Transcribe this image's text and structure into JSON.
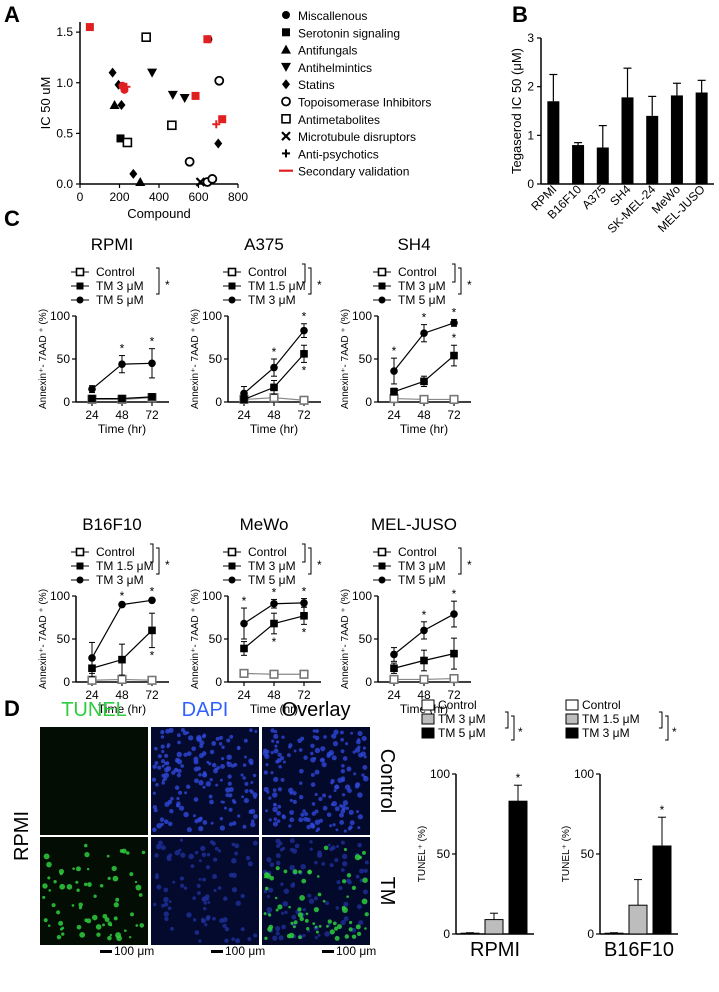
{
  "panels": {
    "A": "A",
    "B": "B",
    "C": "C",
    "D": "D"
  },
  "colors": {
    "red": "#e02020",
    "black": "#000000",
    "gray": "#bdbdbd",
    "tunel": "#2ecc40",
    "dapi": "#3060ff"
  },
  "chart_data": [
    {
      "id": "A",
      "type": "scatter",
      "xlabel": "Compound",
      "ylabel": "IC 50 uM",
      "xlim": [
        0,
        800
      ],
      "ylim": [
        0,
        1.6
      ],
      "xticks": [
        "0",
        "200",
        "400",
        "600",
        "800"
      ],
      "yticks": [
        "0.0",
        "0.5",
        "1.0",
        "1.5"
      ],
      "legend": [
        {
          "label": "Miscallenous",
          "marker": "circle"
        },
        {
          "label": "Serotonin signaling",
          "marker": "square"
        },
        {
          "label": "Antifungals",
          "marker": "triangle-up"
        },
        {
          "label": "Antihelmintics",
          "marker": "triangle-down"
        },
        {
          "label": "Statins",
          "marker": "diamond"
        },
        {
          "label": "Topoisomerase Inhibitors",
          "marker": "circle-open"
        },
        {
          "label": "Antimetabolites",
          "marker": "square-open"
        },
        {
          "label": "Microtubule disruptors",
          "marker": "x"
        },
        {
          "label": "Anti-psychotics",
          "marker": "plus"
        },
        {
          "label": "Secondary validation",
          "marker": "line"
        }
      ],
      "points": [
        {
          "x": 50,
          "y": 1.55,
          "m": "square",
          "c": "red"
        },
        {
          "x": 335,
          "y": 1.45,
          "m": "square-open",
          "c": "black"
        },
        {
          "x": 650,
          "y": 1.43,
          "m": "circle",
          "c": "black"
        },
        {
          "x": 645,
          "y": 1.43,
          "m": "square",
          "c": "red"
        },
        {
          "x": 165,
          "y": 1.1,
          "m": "diamond",
          "c": "black"
        },
        {
          "x": 365,
          "y": 1.1,
          "m": "triangle-down",
          "c": "black"
        },
        {
          "x": 705,
          "y": 1.02,
          "m": "circle-open",
          "c": "black"
        },
        {
          "x": 195,
          "y": 0.98,
          "m": "diamond",
          "c": "black"
        },
        {
          "x": 215,
          "y": 0.97,
          "m": "circle",
          "c": "red"
        },
        {
          "x": 235,
          "y": 0.96,
          "m": "plus",
          "c": "red"
        },
        {
          "x": 225,
          "y": 0.93,
          "m": "circle",
          "c": "red"
        },
        {
          "x": 470,
          "y": 0.88,
          "m": "triangle-down",
          "c": "black"
        },
        {
          "x": 530,
          "y": 0.85,
          "m": "triangle-down",
          "c": "black"
        },
        {
          "x": 585,
          "y": 0.87,
          "m": "square",
          "c": "red"
        },
        {
          "x": 175,
          "y": 0.78,
          "m": "triangle-up",
          "c": "black"
        },
        {
          "x": 210,
          "y": 0.78,
          "m": "diamond",
          "c": "black"
        },
        {
          "x": 720,
          "y": 0.64,
          "m": "square",
          "c": "red"
        },
        {
          "x": 690,
          "y": 0.59,
          "m": "plus",
          "c": "red"
        },
        {
          "x": 465,
          "y": 0.58,
          "m": "square-open",
          "c": "black"
        },
        {
          "x": 205,
          "y": 0.45,
          "m": "square",
          "c": "black"
        },
        {
          "x": 240,
          "y": 0.41,
          "m": "square-open",
          "c": "black"
        },
        {
          "x": 700,
          "y": 0.4,
          "m": "diamond",
          "c": "black"
        },
        {
          "x": 555,
          "y": 0.22,
          "m": "circle-open",
          "c": "black"
        },
        {
          "x": 270,
          "y": 0.1,
          "m": "diamond",
          "c": "black"
        },
        {
          "x": 305,
          "y": 0.02,
          "m": "triangle-up",
          "c": "black"
        },
        {
          "x": 610,
          "y": 0.02,
          "m": "x",
          "c": "black"
        },
        {
          "x": 645,
          "y": 0.02,
          "m": "circle-open",
          "c": "black"
        },
        {
          "x": 670,
          "y": 0.05,
          "m": "circle-open",
          "c": "black"
        }
      ]
    },
    {
      "id": "B",
      "type": "bar",
      "ylabel": "Tegaserod IC 50 (μM)",
      "ylim": [
        0,
        3
      ],
      "yticks": [
        "0",
        "1",
        "2",
        "3"
      ],
      "categories": [
        "RPMI",
        "B16F10",
        "A375",
        "SH4",
        "SK-MEL-24",
        "MeWo",
        "MEL-JUSO"
      ],
      "values": [
        1.7,
        0.8,
        0.75,
        1.78,
        1.4,
        1.82,
        1.88
      ],
      "errors": [
        0.55,
        0.05,
        0.45,
        0.6,
        0.4,
        0.25,
        0.25
      ]
    },
    {
      "id": "C-RPMI",
      "type": "line",
      "title": "RPMI",
      "xlabel": "Time (hr)",
      "ylabel": "Annexin⁺- 7AAD ⁺ (%)",
      "x": [
        "24",
        "48",
        "72"
      ],
      "ylim": [
        0,
        100
      ],
      "yticks": [
        "0",
        "50",
        "100"
      ],
      "series": [
        {
          "name": "Control",
          "marker": "square-open",
          "values": [
            3,
            3,
            5
          ],
          "err": [
            1,
            1,
            1
          ],
          "stars": [
            false,
            false,
            false
          ]
        },
        {
          "name": "TM 3 μM",
          "marker": "square",
          "values": [
            4,
            4,
            6
          ],
          "err": [
            1,
            1,
            1
          ],
          "stars": [
            false,
            false,
            false
          ]
        },
        {
          "name": "TM 5 μM",
          "marker": "circle",
          "values": [
            15,
            44,
            45
          ],
          "err": [
            4,
            10,
            17
          ],
          "stars": [
            false,
            true,
            true
          ]
        }
      ]
    },
    {
      "id": "C-A375",
      "type": "line",
      "title": "A375",
      "xlabel": "Time (hr)",
      "ylabel": "Annexin⁺- 7AAD ⁺ (%)",
      "x": [
        "24",
        "48",
        "72"
      ],
      "ylim": [
        0,
        100
      ],
      "yticks": [
        "0",
        "50",
        "100"
      ],
      "series": [
        {
          "name": "Control",
          "marker": "square-open",
          "values": [
            3,
            5,
            2
          ],
          "err": [
            3,
            4,
            2
          ],
          "stars": [
            false,
            false,
            false
          ]
        },
        {
          "name": "TM 1.5 μM",
          "marker": "square",
          "values": [
            3,
            17,
            56
          ],
          "err": [
            3,
            8,
            10
          ],
          "stars": [
            false,
            false,
            true
          ]
        },
        {
          "name": "TM 3 μM",
          "marker": "circle",
          "values": [
            10,
            40,
            83
          ],
          "err": [
            8,
            10,
            8
          ],
          "stars": [
            false,
            true,
            true
          ]
        }
      ]
    },
    {
      "id": "C-SH4",
      "type": "line",
      "title": "SH4",
      "xlabel": "Time (hr)",
      "ylabel": "Annexin⁺- 7AAD ⁺ (%)",
      "x": [
        "24",
        "48",
        "72"
      ],
      "ylim": [
        0,
        100
      ],
      "yticks": [
        "0",
        "50",
        "100"
      ],
      "series": [
        {
          "name": "Control",
          "marker": "square-open",
          "values": [
            4,
            3,
            3
          ],
          "err": [
            2,
            1,
            2
          ],
          "stars": [
            false,
            false,
            false
          ]
        },
        {
          "name": "TM 3 μM",
          "marker": "square",
          "values": [
            12,
            24,
            54
          ],
          "err": [
            4,
            6,
            12
          ],
          "stars": [
            false,
            false,
            true
          ]
        },
        {
          "name": "TM 5 μM",
          "marker": "circle",
          "values": [
            36,
            80,
            92
          ],
          "err": [
            15,
            10,
            4
          ],
          "stars": [
            true,
            true,
            true
          ]
        }
      ]
    },
    {
      "id": "C-B16F10",
      "type": "line",
      "title": "B16F10",
      "xlabel": "Time (hr)",
      "ylabel": "Annexin⁺- 7AAD ⁺ (%)",
      "x": [
        "24",
        "48",
        "72"
      ],
      "ylim": [
        0,
        100
      ],
      "yticks": [
        "0",
        "50",
        "100"
      ],
      "series": [
        {
          "name": "Control",
          "marker": "square-open",
          "values": [
            2,
            3,
            2
          ],
          "err": [
            2,
            4,
            2
          ],
          "stars": [
            false,
            false,
            false
          ]
        },
        {
          "name": "TM 1.5 μM",
          "marker": "square",
          "values": [
            16,
            26,
            60
          ],
          "err": [
            10,
            18,
            20
          ],
          "stars": [
            false,
            false,
            true
          ]
        },
        {
          "name": "TM 3 μM",
          "marker": "circle",
          "values": [
            28,
            90,
            95
          ],
          "err": [
            18,
            2,
            2
          ],
          "stars": [
            false,
            true,
            true
          ]
        }
      ]
    },
    {
      "id": "C-MeWo",
      "type": "line",
      "title": "MeWo",
      "xlabel": "Time (hr)",
      "ylabel": "Annexin⁺- 7AAD ⁺ (%)",
      "x": [
        "24",
        "48",
        "72"
      ],
      "ylim": [
        0,
        100
      ],
      "yticks": [
        "0",
        "50",
        "100"
      ],
      "series": [
        {
          "name": "Control",
          "marker": "square-open",
          "values": [
            10,
            9,
            9
          ],
          "err": [
            2,
            1,
            1
          ],
          "stars": [
            false,
            false,
            false
          ]
        },
        {
          "name": "TM 3 μM",
          "marker": "square",
          "values": [
            39,
            68,
            77
          ],
          "err": [
            8,
            12,
            10
          ],
          "stars": [
            false,
            true,
            true
          ]
        },
        {
          "name": "TM 5 μM",
          "marker": "circle",
          "values": [
            68,
            91,
            92
          ],
          "err": [
            18,
            5,
            5
          ],
          "stars": [
            true,
            true,
            true
          ]
        }
      ]
    },
    {
      "id": "C-MEL-JUSO",
      "type": "line",
      "title": "MEL-JUSO",
      "xlabel": "Time (hr)",
      "ylabel": "Annexin⁺- 7AAD ⁺ (%)",
      "x": [
        "24",
        "48",
        "72"
      ],
      "ylim": [
        0,
        100
      ],
      "yticks": [
        "0",
        "50",
        "100"
      ],
      "series": [
        {
          "name": "Control",
          "marker": "square-open",
          "values": [
            3,
            3,
            4
          ],
          "err": [
            2,
            2,
            2
          ],
          "stars": [
            false,
            false,
            false
          ]
        },
        {
          "name": "TM 3 μM",
          "marker": "square",
          "values": [
            16,
            25,
            33
          ],
          "err": [
            6,
            12,
            18
          ],
          "stars": [
            false,
            false,
            false
          ]
        },
        {
          "name": "TM 5 μM",
          "marker": "circle",
          "values": [
            32,
            60,
            79
          ],
          "err": [
            8,
            10,
            15
          ],
          "stars": [
            false,
            true,
            true
          ]
        }
      ]
    },
    {
      "id": "D-RPMI",
      "type": "bar",
      "xlabel": "RPMI",
      "ylabel": "TUNEL⁺ (%)",
      "ylim": [
        0,
        100
      ],
      "yticks": [
        "0",
        "50",
        "100"
      ],
      "categories": [
        "Control",
        "TM 3 μM",
        "TM 5 μM"
      ],
      "values": [
        0.5,
        9,
        83
      ],
      "errors": [
        0.3,
        4,
        10
      ],
      "stars": [
        false,
        false,
        true
      ]
    },
    {
      "id": "D-B16F10",
      "type": "bar",
      "xlabel": "B16F10",
      "ylabel": "TUNEL⁺ (%)",
      "ylim": [
        0,
        100
      ],
      "yticks": [
        "0",
        "50",
        "100"
      ],
      "categories": [
        "Control",
        "TM 1.5 μM",
        "TM 3 μM"
      ],
      "values": [
        0.5,
        18,
        55
      ],
      "errors": [
        0.3,
        16,
        18
      ],
      "stars": [
        false,
        false,
        true
      ]
    }
  ],
  "micro": {
    "col_titles": [
      "TUNEL",
      "DAPI",
      "Overlay"
    ],
    "row_labels": [
      "Control",
      "TM"
    ],
    "sample": "RPMI",
    "scale_bar": "100 μm"
  },
  "star": "*"
}
